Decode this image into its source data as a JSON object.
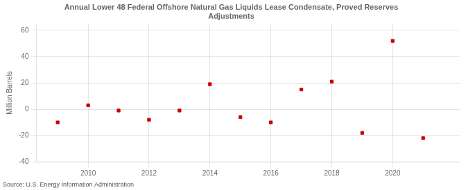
{
  "chart_data": {
    "type": "scatter",
    "title": "Annual Lower 48 Federal Offshore Natural Gas Liquids Lease Condensate, Proved Reserves\nAdjustments",
    "ylabel": "Million Barrels",
    "source": "Source: U.S. Energy Information Administration",
    "x": [
      2009,
      2010,
      2011,
      2012,
      2013,
      2014,
      2015,
      2016,
      2017,
      2018,
      2019,
      2020,
      2021
    ],
    "values": [
      -10,
      3,
      -1,
      -8,
      -1,
      19,
      -6,
      -10,
      15,
      21,
      -18,
      52,
      -22
    ],
    "color": "#cc0000",
    "marker": "square",
    "xlim": [
      2008.3,
      2022.2
    ],
    "xticks": [
      2010,
      2012,
      2014,
      2016,
      2018,
      2020
    ],
    "ylim": [
      -40,
      65
    ],
    "yticks": [
      -40,
      -20,
      0,
      20,
      40,
      60
    ],
    "grid": true
  }
}
